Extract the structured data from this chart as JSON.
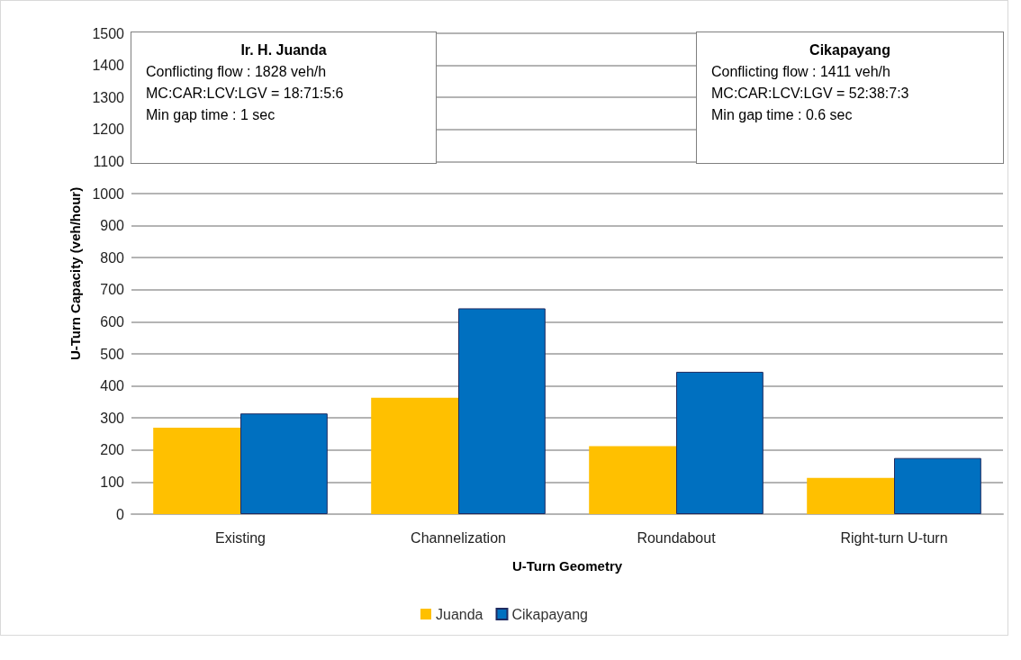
{
  "chart_data": {
    "type": "bar",
    "xlabel": "U-Turn Geometry",
    "ylabel": "U-Turn Capacity (veh/hour)",
    "categories": [
      "Existing",
      "Channelization",
      "Roundabout",
      "Right-turn U-turn"
    ],
    "series": [
      {
        "name": "Juanda",
        "color": "#ffc000",
        "values": [
          270,
          363,
          212,
          113
        ]
      },
      {
        "name": "Cikapayang",
        "color": "#0070c0",
        "values": [
          314,
          642,
          444,
          175
        ]
      }
    ],
    "ylim": [
      0,
      1500
    ],
    "yticks": [
      0,
      100,
      200,
      300,
      400,
      500,
      600,
      700,
      800,
      900,
      1000,
      1100,
      1200,
      1300,
      1400,
      1500
    ],
    "grid": "y",
    "legend": "bottom",
    "annotations": [
      "Ir. H. Juanda\nConflicting flow : 1828 veh/h\nMC:CAR:LCV:LGV = 18:71:5:6\nMin gap time : 1 sec",
      "Cikapayang\nConflicting flow : 1411 veh/h\nMC:CAR:LCV:LGV = 52:38:7:3\nMin gap time : 0.6 sec"
    ]
  }
}
